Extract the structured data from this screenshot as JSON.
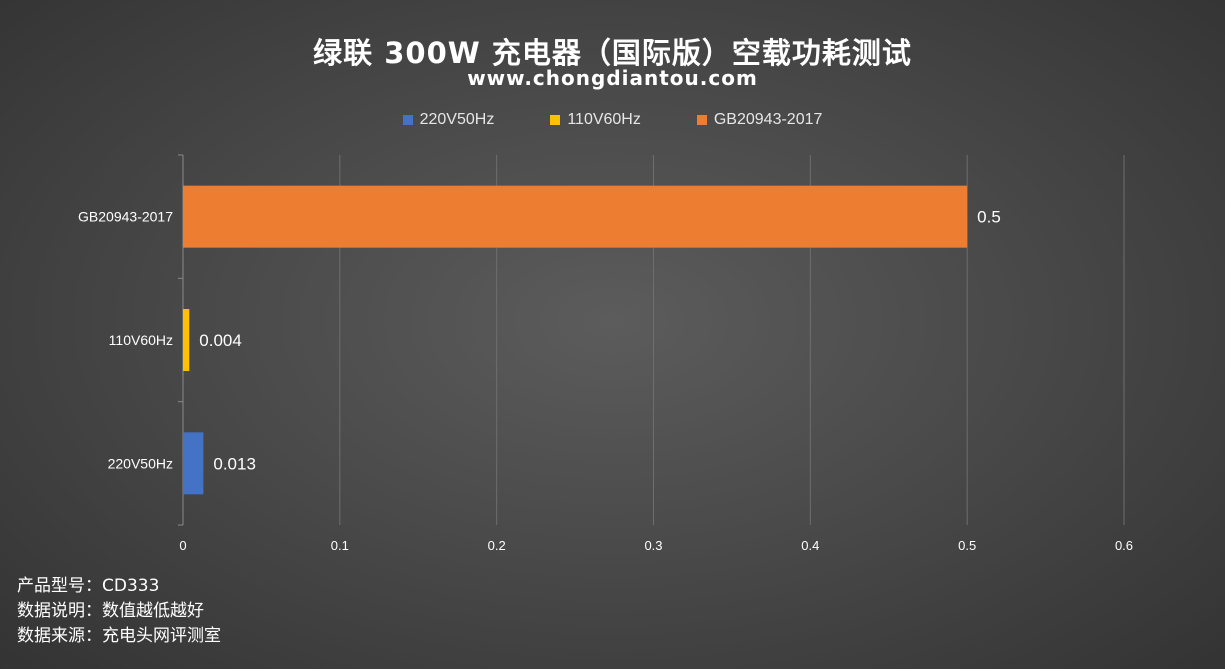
{
  "header": {
    "title": "绿联 300W 充电器（国际版）空载功耗测试",
    "subtitle": "www.chongdiantou.com"
  },
  "legend": [
    {
      "label": "220V50Hz",
      "color": "#4472c4"
    },
    {
      "label": "110V60Hz",
      "color": "#ffc000"
    },
    {
      "label": "GB20943-2017",
      "color": "#ed7d31"
    }
  ],
  "chart_data": {
    "type": "bar",
    "orientation": "horizontal",
    "categories": [
      "220V50Hz",
      "110V60Hz",
      "GB20943-2017"
    ],
    "values": [
      0.013,
      0.004,
      0.5
    ],
    "value_labels": [
      "0.013",
      "0.004",
      "0.5"
    ],
    "colors": [
      "#4472c4",
      "#ffc000",
      "#ed7d31"
    ],
    "xlim": [
      0,
      0.6
    ],
    "xticks": [
      0,
      0.1,
      0.2,
      0.3,
      0.4,
      0.5,
      0.6
    ],
    "xtick_labels": [
      "0",
      "0.1",
      "0.2",
      "0.3",
      "0.4",
      "0.5",
      "0.6"
    ],
    "grid": true,
    "legend_position": "top"
  },
  "footer": {
    "model": "产品型号：CD333",
    "note": "数据说明：数值越低越好",
    "source": "数据来源：充电头网评测室"
  }
}
